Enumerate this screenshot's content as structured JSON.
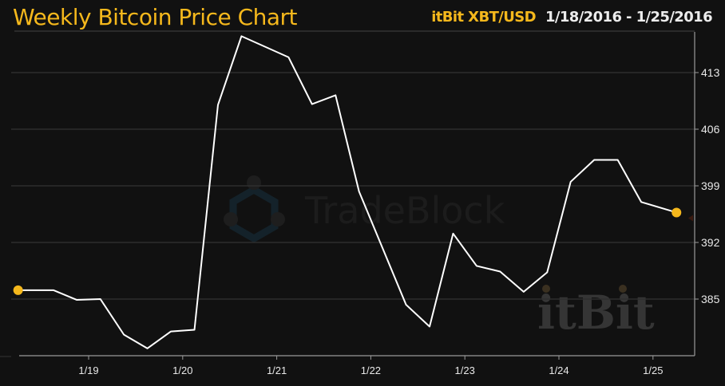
{
  "header": {
    "title": "Weekly Bitcoin Price Chart",
    "exchange": "itBit XBT/USD",
    "date_range": "1/18/2016 - 1/25/2016"
  },
  "watermarks": {
    "tradeblock": "TradeBlock",
    "itbit": "itBit"
  },
  "colors": {
    "background": "#111111",
    "accent": "#f5b81c",
    "line": "#ffffff",
    "grid": "#2e2e2e",
    "axis": "#9a9a9a"
  },
  "chart_data": {
    "type": "line",
    "title": "Weekly Bitcoin Price Chart",
    "subtitle": "itBit XBT/USD 1/18/2016 - 1/25/2016",
    "xlabel": "",
    "ylabel": "",
    "x_ticks": [
      "1/19",
      "1/20",
      "1/21",
      "1/22",
      "1/23",
      "1/24",
      "1/25"
    ],
    "y_ticks": [
      385,
      392,
      399,
      406,
      413
    ],
    "ylim": [
      378,
      420
    ],
    "grid": true,
    "y_axis_position": "right",
    "legend": null,
    "series": [
      {
        "name": "XBT/USD",
        "x": [
          "1/18 06:00",
          "1/18 15:00",
          "1/18 21:00",
          "1/19 03:00",
          "1/19 09:00",
          "1/19 15:00",
          "1/19 21:00",
          "1/20 03:00",
          "1/20 09:00",
          "1/20 15:00",
          "1/21 03:00",
          "1/21 09:00",
          "1/21 15:00",
          "1/21 21:00",
          "1/22 09:00",
          "1/22 15:00",
          "1/22 21:00",
          "1/23 03:00",
          "1/23 09:00",
          "1/23 15:00",
          "1/23 21:00",
          "1/24 03:00",
          "1/24 09:00",
          "1/24 15:00",
          "1/24 21:00",
          "1/25 06:00"
        ],
        "values": [
          386.1,
          386.1,
          384.9,
          385.0,
          380.6,
          378.9,
          381.0,
          381.2,
          409.0,
          417.5,
          414.9,
          409.1,
          410.2,
          398.3,
          384.3,
          381.6,
          393.1,
          389.1,
          388.4,
          385.9,
          388.3,
          399.5,
          402.2,
          402.2,
          397.0,
          395.7
        ]
      }
    ],
    "markers": [
      {
        "label": "start",
        "value": 386.1
      },
      {
        "label": "end",
        "value": 395.7
      }
    ]
  }
}
